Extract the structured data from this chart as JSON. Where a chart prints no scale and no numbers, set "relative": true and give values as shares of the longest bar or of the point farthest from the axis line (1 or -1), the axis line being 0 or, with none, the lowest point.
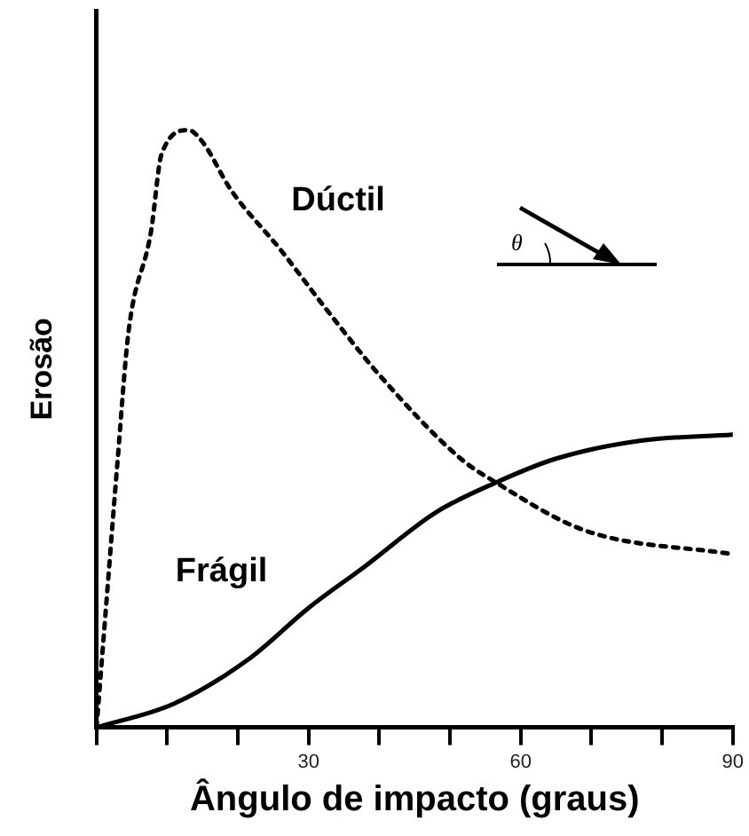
{
  "chart_data": {
    "type": "line",
    "xlabel": "Ângulo de impacto (graus)",
    "ylabel": "Erosão",
    "relative": true,
    "xlim": [
      0,
      90
    ],
    "xticks": [
      {
        "value": 0,
        "label": null
      },
      {
        "value": 10,
        "label": null
      },
      {
        "value": 20,
        "label": null
      },
      30,
      {
        "value": 40,
        "label": null
      },
      {
        "value": 50,
        "label": null
      },
      60,
      {
        "value": 70,
        "label": null
      },
      {
        "value": 80,
        "label": null
      },
      90
    ],
    "grid": false,
    "legend": false,
    "marker": "none",
    "annotations": [
      "θ"
    ],
    "series": [
      {
        "name": "Dúctil",
        "color": "#000000",
        "line_style": "dotted",
        "x": [
          0,
          1,
          3,
          4.5,
          7.7,
          9.2,
          13,
          15,
          19,
          26,
          32.5,
          40,
          51.5,
          56.5,
          69,
          90
        ],
        "values": [
          0,
          0.15,
          0.45,
          0.66,
          0.83,
          0.96,
          1,
          0.98,
          0.9,
          0.8,
          0.7,
          0.59,
          0.45,
          0.41,
          0.33,
          0.29
        ]
      },
      {
        "name": "Frágil",
        "color": "#000000",
        "line_style": "solid",
        "x": [
          0,
          11,
          21.6,
          30,
          38,
          48,
          56.5,
          65,
          77,
          90
        ],
        "values": [
          0,
          0.04,
          0.115,
          0.2,
          0.27,
          0.36,
          0.41,
          0.45,
          0.48,
          0.49
        ]
      }
    ]
  }
}
